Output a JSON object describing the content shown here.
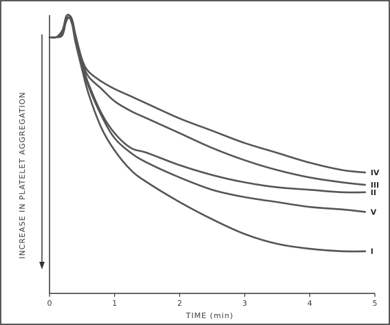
{
  "chart_data": {
    "type": "line",
    "title": "",
    "xlabel": "TIME (min)",
    "ylabel": "INCREASE IN PLATELET AGGREGATION",
    "x_ticks": [
      "0",
      "1",
      "2",
      "3",
      "4",
      "5"
    ],
    "xlim": [
      0,
      5
    ],
    "ylim": [
      0,
      100
    ],
    "y_values_note": "",
    "grid": false,
    "line_color": "#555555",
    "series": [
      {
        "name": "IV",
        "x": [
          0,
          0.1,
          0.2,
          0.25,
          0.3,
          0.35,
          0.4,
          0.5,
          0.6,
          0.8,
          1,
          1.25,
          1.5,
          2,
          2.5,
          3,
          3.5,
          4,
          4.5,
          4.85
        ],
        "y": [
          91,
          91,
          92,
          99,
          100,
          98,
          92,
          82,
          77,
          73,
          70,
          67,
          64,
          58,
          53,
          48,
          44,
          40,
          37,
          36
        ]
      },
      {
        "name": "III",
        "x": [
          0,
          0.1,
          0.2,
          0.25,
          0.3,
          0.35,
          0.4,
          0.5,
          0.6,
          0.8,
          1,
          1.25,
          1.5,
          2,
          2.5,
          3,
          3.5,
          4,
          4.5,
          4.85
        ],
        "y": [
          91,
          91,
          93,
          99,
          100,
          97,
          90,
          81,
          75,
          70,
          65,
          61,
          58,
          52,
          46,
          41,
          37,
          34,
          32,
          31
        ]
      },
      {
        "name": "II",
        "x": [
          0,
          0.1,
          0.2,
          0.25,
          0.3,
          0.35,
          0.4,
          0.5,
          0.6,
          0.8,
          1,
          1.25,
          1.5,
          2,
          2.5,
          3,
          3.5,
          4,
          4.5,
          4.85
        ],
        "y": [
          91,
          91,
          92,
          98,
          99,
          97,
          90,
          80,
          72,
          60,
          52,
          46,
          44,
          39,
          35,
          32,
          30,
          29,
          28,
          28
        ]
      },
      {
        "name": "V",
        "x": [
          0,
          0.1,
          0.2,
          0.25,
          0.3,
          0.35,
          0.4,
          0.5,
          0.6,
          0.8,
          1,
          1.25,
          1.5,
          2,
          2.5,
          3,
          3.5,
          4,
          4.5,
          4.85
        ],
        "y": [
          91,
          91,
          92,
          97,
          99,
          96,
          89,
          80,
          71,
          59,
          50,
          44,
          40,
          34,
          29,
          26,
          24,
          22,
          21,
          20
        ]
      },
      {
        "name": "I",
        "x": [
          0,
          0.1,
          0.2,
          0.25,
          0.3,
          0.35,
          0.4,
          0.5,
          0.6,
          0.8,
          1,
          1.25,
          1.5,
          2,
          2.5,
          3,
          3.5,
          4,
          4.5,
          4.85
        ],
        "y": [
          91,
          91,
          94,
          99,
          100,
          97,
          89,
          78,
          68,
          54,
          45,
          37,
          32,
          24,
          17,
          11,
          7,
          5,
          4,
          4
        ]
      }
    ]
  }
}
